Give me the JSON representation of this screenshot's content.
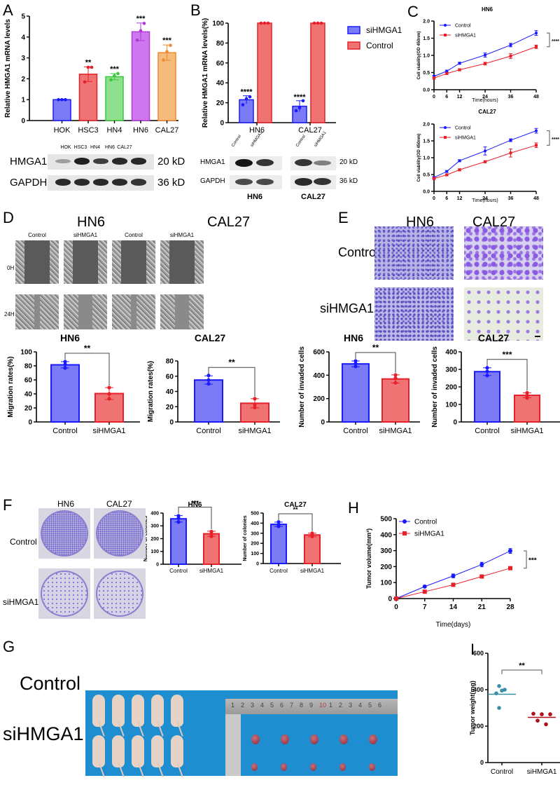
{
  "panels": {
    "A": {
      "letter": "A"
    },
    "B": {
      "letter": "B"
    },
    "C": {
      "letter": "C"
    },
    "D": {
      "letter": "D",
      "titles": [
        "HN6",
        "CAL27"
      ],
      "columns": [
        "Control",
        "siHMGA1",
        "Control",
        "siHMGA1"
      ],
      "rows": [
        "0H",
        "24H"
      ]
    },
    "E": {
      "letter": "E",
      "titles": [
        "HN6",
        "CAL27"
      ],
      "rows": [
        "Control",
        "siHMGA1"
      ]
    },
    "F": {
      "letter": "F",
      "titles": [
        "HN6",
        "CAL27"
      ],
      "rows": [
        "Control",
        "siHMGA1"
      ]
    },
    "G": {
      "letter": "G",
      "rows": [
        "Control",
        "siHMGA1"
      ],
      "ruler_numbers": [
        "1",
        "2",
        "3",
        "4",
        "5",
        "6",
        "7",
        "8",
        "9",
        "10",
        "1",
        "2",
        "3",
        "4",
        "5",
        "6"
      ]
    },
    "H": {
      "letter": "H"
    },
    "I": {
      "letter": "I"
    }
  },
  "western_A": {
    "lanes": [
      "HOK",
      "HSC3",
      "HN4",
      "HN6",
      "CAL27"
    ],
    "rows": [
      {
        "name": "HMGA1",
        "size": "20 kD",
        "intensity": [
          0.35,
          0.95,
          0.8,
          0.9,
          0.9
        ]
      },
      {
        "name": "GAPDH",
        "size": "36 kD",
        "intensity": [
          0.9,
          0.9,
          0.9,
          0.9,
          0.85
        ]
      }
    ]
  },
  "western_B": {
    "lanes": [
      "Control",
      "siHMGA1",
      "Control",
      "siHMGA1"
    ],
    "groups": [
      "HN6",
      "CAL27"
    ],
    "rows": [
      {
        "name": "HMGA1",
        "size": "20 kD",
        "intensity": [
          1.0,
          0.85,
          0.85,
          0.5
        ]
      },
      {
        "name": "GAPDH",
        "size": "36 kD",
        "intensity": [
          0.75,
          0.75,
          0.9,
          0.85
        ]
      }
    ]
  },
  "colors": {
    "blue": "#1a1aff",
    "blue_fill": "#7b7bf5",
    "red": "#e8202a",
    "red_fill": "#ef7373",
    "green": "#3cc63c",
    "green_fill": "#8ee08e",
    "purple": "#b03ad8",
    "purple_fill": "#cc77ee",
    "orange": "#f08a30",
    "orange_fill": "#f5bb7a",
    "teal": "#3a8fa8",
    "darkred": "#b0101a"
  },
  "chart_data": [
    {
      "id": "A",
      "type": "bar",
      "categories": [
        "HOK",
        "HSC3",
        "HN4",
        "HN6",
        "CAL27"
      ],
      "values": [
        1.0,
        2.22,
        2.1,
        4.25,
        3.25
      ],
      "errors": [
        0.02,
        0.35,
        0.15,
        0.42,
        0.37
      ],
      "points": [
        [
          1.0,
          1.0,
          1.0
        ],
        [
          1.85,
          2.55,
          2.55
        ],
        [
          1.95,
          2.15,
          2.25
        ],
        [
          3.85,
          4.3,
          4.65
        ],
        [
          2.9,
          3.3,
          3.6
        ]
      ],
      "significance": [
        "",
        "**",
        "***",
        "***",
        "***"
      ],
      "colors": [
        "blue",
        "red",
        "green",
        "purple",
        "orange"
      ],
      "ylabel": "Relative HMGA1 mRNA levels",
      "ylim": [
        0,
        5
      ],
      "yticks": [
        0,
        1,
        2,
        3,
        4,
        5
      ]
    },
    {
      "id": "B",
      "type": "bar",
      "categories": [
        "HN6",
        "CAL27"
      ],
      "series": [
        {
          "name": "siHMGA1",
          "values": [
            23,
            16.5
          ],
          "errors": [
            4,
            5.5
          ],
          "points": [
            [
              18,
              24,
              26
            ],
            [
              12,
              15,
              22
            ]
          ],
          "significance": [
            "****",
            "****"
          ]
        },
        {
          "name": "Control",
          "values": [
            100,
            100
          ],
          "errors": [
            0,
            0
          ],
          "points": [
            [
              100,
              100,
              100
            ],
            [
              100,
              100,
              100
            ]
          ],
          "significance": [
            "",
            ""
          ]
        }
      ],
      "ylabel": "Relative HMGA1 mRNA levels(%)",
      "ylim": [
        0,
        100
      ],
      "yticks": [
        0,
        20,
        40,
        60,
        80,
        100
      ],
      "legend": [
        "siHMGA1",
        "Control"
      ],
      "legend_position": "right"
    },
    {
      "id": "C1",
      "type": "line",
      "title": "HN6",
      "x": [
        0,
        6,
        12,
        24,
        36,
        48
      ],
      "series": [
        {
          "name": "Control",
          "values": [
            0.39,
            0.54,
            0.77,
            1.01,
            1.3,
            1.65
          ],
          "errors": [
            0.03,
            0.03,
            0.03,
            0.06,
            0.05,
            0.07
          ]
        },
        {
          "name": "siHMGA1",
          "values": [
            0.34,
            0.47,
            0.58,
            0.76,
            0.98,
            1.25
          ],
          "errors": [
            0.03,
            0.03,
            0.03,
            0.04,
            0.07,
            0.05
          ]
        }
      ],
      "significance": "****",
      "xlabel": "Time(hours)",
      "ylabel": "Cell viability(OD 450nm)",
      "ylim": [
        0,
        2.0
      ],
      "yticks": [
        "0.0",
        "0.5",
        "1.0",
        "1.5",
        "2.0"
      ],
      "legend_position": "top-left"
    },
    {
      "id": "C2",
      "type": "line",
      "title": "CAL27",
      "x": [
        0,
        6,
        12,
        24,
        36,
        48
      ],
      "series": [
        {
          "name": "Control",
          "values": [
            0.41,
            0.59,
            0.91,
            1.2,
            1.52,
            1.8
          ],
          "errors": [
            0.03,
            0.03,
            0.03,
            0.12,
            0.04,
            0.07
          ]
        },
        {
          "name": "siHMGA1",
          "values": [
            0.38,
            0.49,
            0.64,
            0.88,
            1.14,
            1.37
          ],
          "errors": [
            0.03,
            0.03,
            0.03,
            0.03,
            0.12,
            0.07
          ]
        }
      ],
      "significance": "****",
      "xlabel": "Time(hours)",
      "ylabel": "Cell viability(OD 450nm)",
      "ylim": [
        0,
        2.0
      ],
      "yticks": [
        "0.0",
        "0.5",
        "1.0",
        "1.5",
        "2.0"
      ],
      "legend_position": "top-left"
    },
    {
      "id": "D1",
      "type": "bar",
      "title": "HN6",
      "categories": [
        "Control",
        "siHMGA1"
      ],
      "values": [
        81.5,
        40.5
      ],
      "errors": [
        4.5,
        8.5
      ],
      "points": [
        [
          77,
          82,
          86
        ],
        [
          33,
          40,
          49
        ]
      ],
      "significance": "**",
      "ylabel": "Migration rates(%)",
      "ylim": [
        0,
        100
      ],
      "yticks": [
        0,
        20,
        40,
        60,
        80,
        100
      ]
    },
    {
      "id": "D2",
      "type": "bar",
      "title": "CAL27",
      "categories": [
        "Control",
        "siHMGA1"
      ],
      "values": [
        55,
        24.5
      ],
      "errors": [
        5.5,
        6
      ],
      "points": [
        [
          50,
          55,
          61
        ],
        [
          19,
          23,
          30.5
        ]
      ],
      "significance": "**",
      "ylabel": "Migration rates(%)",
      "ylim": [
        0,
        80
      ],
      "yticks": [
        0,
        20,
        40,
        60,
        80
      ]
    },
    {
      "id": "E1",
      "type": "bar",
      "title": "HN6",
      "categories": [
        "Control",
        "siHMGA1"
      ],
      "values": [
        497,
        368
      ],
      "errors": [
        25,
        35
      ],
      "points": [
        [
          475,
          500,
          522
        ],
        [
          335,
          375,
          402
        ]
      ],
      "significance": "**",
      "ylabel": "Number of invaded cells",
      "ylim": [
        0,
        600
      ],
      "yticks": [
        0,
        200,
        400,
        600
      ]
    },
    {
      "id": "E2",
      "type": "bar",
      "title": "CAL27",
      "categories": [
        "Control",
        "siHMGA1"
      ],
      "values": [
        287,
        152
      ],
      "errors": [
        22,
        14
      ],
      "points": [
        [
          265,
          288,
          309
        ],
        [
          137,
          150,
          166
        ]
      ],
      "significance": "***",
      "ylabel": "Number of invaded cells",
      "ylim": [
        0,
        400
      ],
      "yticks": [
        0,
        100,
        200,
        300,
        400
      ]
    },
    {
      "id": "F1",
      "type": "bar",
      "title": "HN6",
      "categories": [
        "Control",
        "siHMGA1"
      ],
      "values": [
        355,
        238
      ],
      "errors": [
        25,
        20
      ],
      "points": [
        [
          330,
          360,
          378
        ],
        [
          218,
          238,
          255
        ]
      ],
      "significance": "***",
      "ylabel": "Number of colonies",
      "ylim": [
        0,
        400
      ],
      "yticks": [
        0,
        100,
        200,
        300,
        400
      ]
    },
    {
      "id": "F2",
      "type": "bar",
      "title": "CAL27",
      "categories": [
        "Control",
        "siHMGA1"
      ],
      "values": [
        388,
        283
      ],
      "errors": [
        22,
        18
      ],
      "points": [
        [
          368,
          385,
          412
        ],
        [
          268,
          285,
          300
        ]
      ],
      "significance": "**",
      "ylabel": "Number of colonies",
      "ylim": [
        0,
        500
      ],
      "yticks": [
        0,
        100,
        200,
        300,
        400,
        500
      ]
    },
    {
      "id": "H",
      "type": "line",
      "x": [
        0,
        7,
        14,
        21,
        28
      ],
      "series": [
        {
          "name": "Control",
          "values": [
            0,
            75,
            142,
            213,
            298
          ],
          "errors": [
            0,
            5,
            12,
            14,
            15
          ]
        },
        {
          "name": "siHMGA1",
          "values": [
            0,
            43,
            86,
            138,
            190
          ],
          "errors": [
            0,
            4,
            6,
            5,
            6
          ]
        }
      ],
      "significance": "***",
      "xlabel": "Time(days)",
      "ylabel": "Tumor volume(mm³)",
      "ylim": [
        0,
        500
      ],
      "yticks": [
        0,
        100,
        200,
        300,
        400,
        500
      ],
      "legend_position": "top-left"
    },
    {
      "id": "I",
      "type": "scatter",
      "categories": [
        "Control",
        "siHMGA1"
      ],
      "series": [
        {
          "name": "Control",
          "points": [
            420,
            400,
            395,
            380,
            300
          ],
          "mean": 375
        },
        {
          "name": "siHMGA1",
          "points": [
            268,
            265,
            265,
            230,
            210
          ],
          "mean": 248
        }
      ],
      "significance": "**",
      "ylabel": "Tumor weight(mg)",
      "ylim": [
        0,
        600
      ],
      "yticks": [
        0,
        200,
        400,
        600
      ]
    }
  ]
}
